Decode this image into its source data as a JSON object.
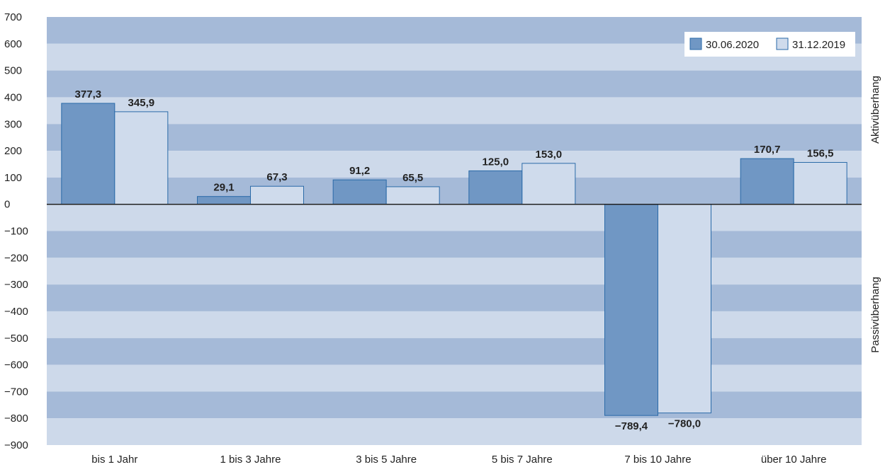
{
  "chart_data": {
    "type": "bar",
    "categories": [
      "bis 1 Jahr",
      "1 bis 3 Jahre",
      "3 bis 5 Jahre",
      "5 bis 7 Jahre",
      "7 bis 10 Jahre",
      "über 10 Jahre"
    ],
    "series": [
      {
        "name": "30.06.2020",
        "values": [
          377.3,
          29.1,
          91.2,
          125.0,
          -789.4,
          170.7
        ],
        "labels": [
          "377,3",
          "29,1",
          "91,2",
          "125,0",
          "−789,4",
          "170,7"
        ],
        "color": "#7097c4"
      },
      {
        "name": "31.12.2019",
        "values": [
          345.9,
          67.3,
          65.5,
          153.0,
          -780.0,
          156.5
        ],
        "labels": [
          "345,9",
          "67,3",
          "65,5",
          "153,0",
          "−780,0",
          "156,5"
        ],
        "color": "#cfdbec"
      }
    ],
    "ylim": [
      -900,
      700
    ],
    "yticks": [
      700,
      600,
      500,
      400,
      300,
      200,
      100,
      0,
      -100,
      -200,
      -300,
      -400,
      -500,
      -600,
      -700,
      -800,
      -900
    ],
    "ytick_labels": [
      "700",
      "600",
      "500",
      "400",
      "300",
      "200",
      "100",
      "0",
      "−100",
      "−200",
      "−300",
      "−400",
      "−500",
      "−600",
      "−700",
      "−800",
      "−900"
    ],
    "right_labels": {
      "positive": "Aktivüberhang",
      "negative": "Passivüberhang"
    },
    "legend_position": "top-right",
    "band_colors": [
      "#a5bad8",
      "#cdd9ea"
    ],
    "bar_border": "#2a6aa8"
  }
}
